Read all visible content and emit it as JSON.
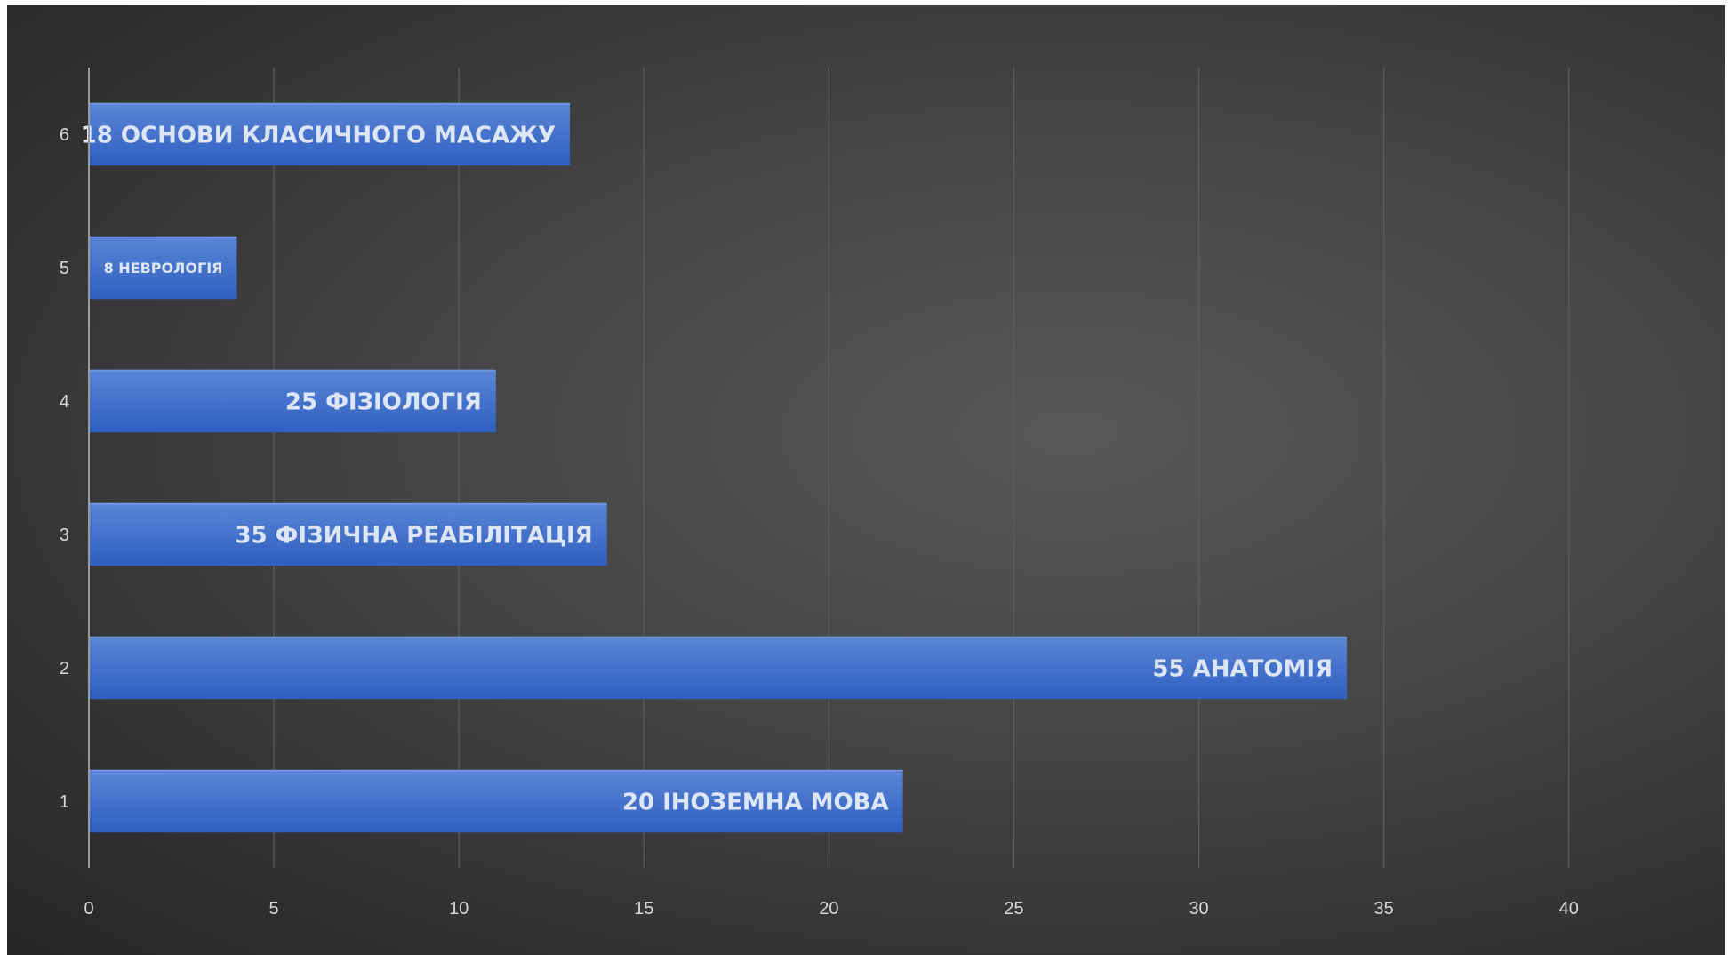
{
  "chart_data": {
    "type": "bar",
    "orientation": "horizontal",
    "categories": [
      "1",
      "2",
      "3",
      "4",
      "5",
      "6"
    ],
    "values": [
      22,
      34,
      14,
      11,
      4,
      13
    ],
    "data_labels": [
      "20 ІНОЗЕМНА МОВА",
      "55 АНАТОМІЯ",
      "35 ФІЗИЧНА РЕАБІЛІТАЦІЯ",
      "25 ФІЗІОЛОГІЯ",
      "8 НЕВРОЛОГІЯ",
      "18 ОСНОВИ КЛАСИЧНОГО МАСАЖУ"
    ],
    "x_ticks": [
      0,
      5,
      10,
      15,
      20,
      25,
      30,
      35,
      40
    ],
    "xlim": [
      0,
      42
    ],
    "title": "",
    "xlabel": "",
    "ylabel": "",
    "grid": "vertical",
    "legend": "none",
    "colors": {
      "bar_top": "#5b86d6",
      "bar_bottom": "#2f5fbf",
      "label": "#dde6f4",
      "tick": "#d9d9d9",
      "grid": "#5e5e5e",
      "axis": "#9a9a9a"
    }
  }
}
